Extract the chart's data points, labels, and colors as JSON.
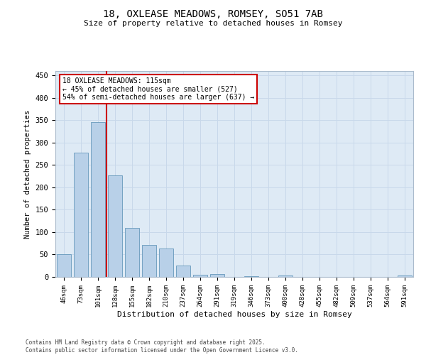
{
  "title": "18, OXLEASE MEADOWS, ROMSEY, SO51 7AB",
  "subtitle": "Size of property relative to detached houses in Romsey",
  "xlabel": "Distribution of detached houses by size in Romsey",
  "ylabel": "Number of detached properties",
  "categories": [
    "46sqm",
    "73sqm",
    "101sqm",
    "128sqm",
    "155sqm",
    "182sqm",
    "210sqm",
    "237sqm",
    "264sqm",
    "291sqm",
    "319sqm",
    "346sqm",
    "373sqm",
    "400sqm",
    "428sqm",
    "455sqm",
    "482sqm",
    "509sqm",
    "537sqm",
    "564sqm",
    "591sqm"
  ],
  "values": [
    50,
    278,
    346,
    227,
    110,
    72,
    63,
    25,
    5,
    7,
    0,
    1,
    0,
    3,
    0,
    0,
    0,
    0,
    0,
    0,
    3
  ],
  "bar_color": "#b8d0e8",
  "bar_edge_color": "#6699bb",
  "grid_color": "#c8d8ea",
  "background_color": "#deeaf5",
  "vline_color": "#cc0000",
  "annotation_text": "18 OXLEASE MEADOWS: 115sqm\n← 45% of detached houses are smaller (527)\n54% of semi-detached houses are larger (637) →",
  "annotation_box_facecolor": "#ffffff",
  "annotation_box_edgecolor": "#cc0000",
  "footer": "Contains HM Land Registry data © Crown copyright and database right 2025.\nContains public sector information licensed under the Open Government Licence v3.0.",
  "ylim": [
    0,
    460
  ],
  "yticks": [
    0,
    50,
    100,
    150,
    200,
    250,
    300,
    350,
    400,
    450
  ]
}
